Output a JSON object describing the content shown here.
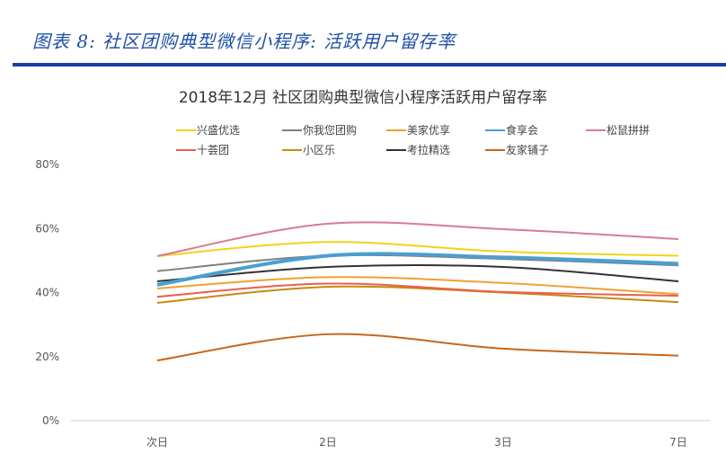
{
  "figure_title": "图表 8: 社区团购典型微信小程序: 活跃用户留存率",
  "chart_data": {
    "type": "line",
    "title": "2018年12月 社区团购典型微信小程序活跃用户留存率",
    "categories": [
      "次日",
      "2日",
      "3日",
      "7日"
    ],
    "ylim": [
      0,
      80
    ],
    "yticks": [
      "0%",
      "20%",
      "40%",
      "60%",
      "80%"
    ],
    "grid": false,
    "legend_position": "top",
    "series": [
      {
        "name": "兴盛优选",
        "color": "#f2d31b",
        "values": [
          51.4,
          55.8,
          52.8,
          51.5
        ]
      },
      {
        "name": "你我您团购",
        "color": "#7f7f7f",
        "values": [
          46.7,
          51.5,
          50.5,
          48.5
        ]
      },
      {
        "name": "美家优享",
        "color": "#f0a030",
        "values": [
          41.3,
          44.8,
          43.0,
          39.5
        ]
      },
      {
        "name": "食享会",
        "color": "#4a9fd0",
        "values": [
          42.4,
          51.5,
          51.0,
          49.0
        ]
      },
      {
        "name": "松鼠拼拼",
        "color": "#d97a9a",
        "values": [
          51.4,
          61.5,
          59.8,
          56.7
        ]
      },
      {
        "name": "十荟团",
        "color": "#e8604a",
        "values": [
          38.7,
          42.8,
          40.2,
          39.0
        ]
      },
      {
        "name": "小区乐",
        "color": "#c58a10",
        "values": [
          36.8,
          41.8,
          40.0,
          37.0
        ]
      },
      {
        "name": "考拉精选",
        "color": "#333333",
        "values": [
          43.5,
          48.0,
          48.0,
          43.5
        ]
      },
      {
        "name": "友家铺子",
        "color": "#c8661a",
        "values": [
          18.8,
          27.0,
          22.5,
          20.3
        ]
      }
    ]
  }
}
